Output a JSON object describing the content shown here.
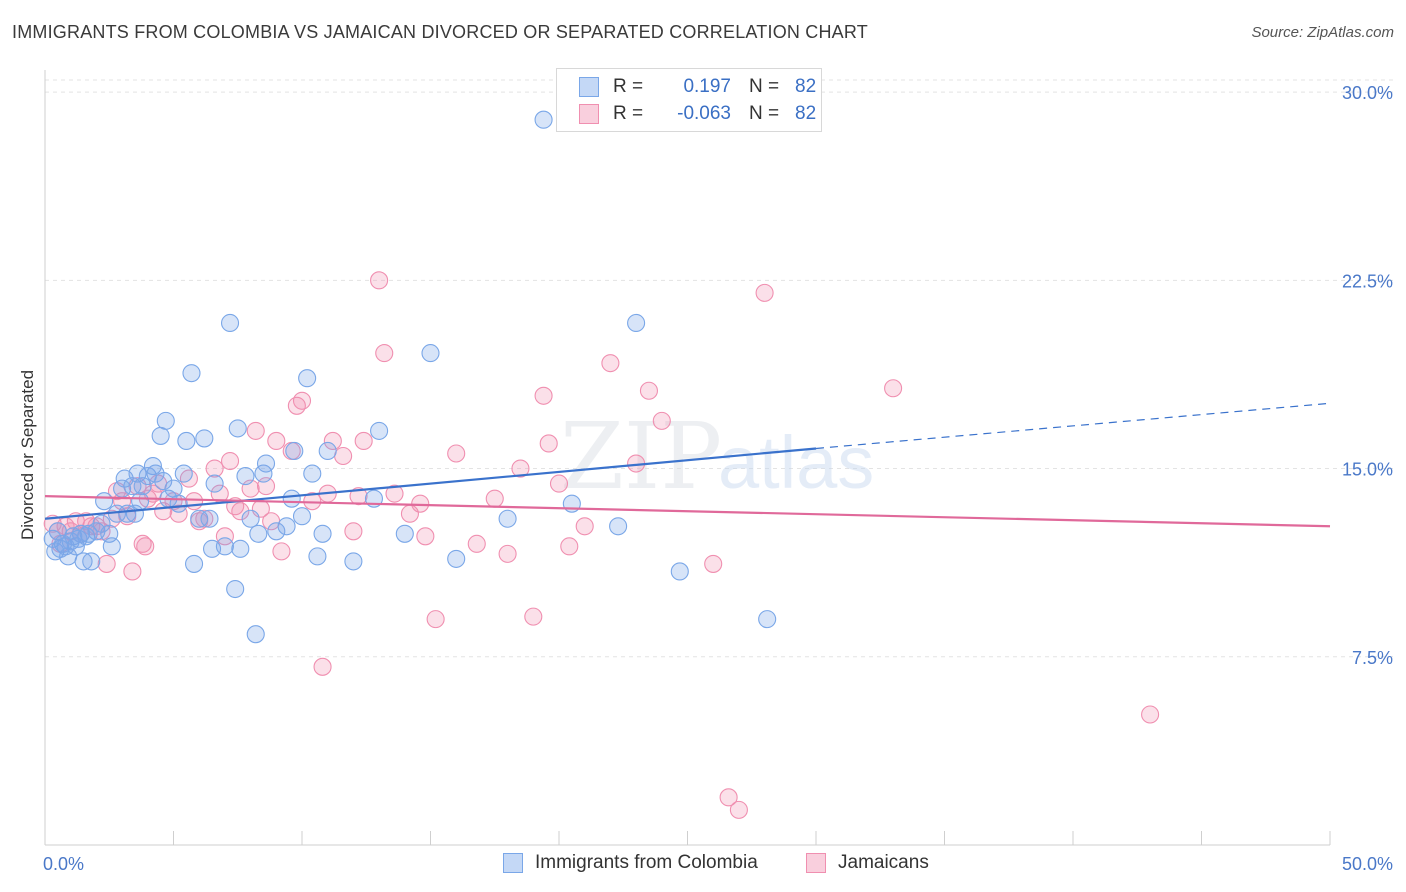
{
  "header": {
    "title": "IMMIGRANTS FROM COLOMBIA VS JAMAICAN DIVORCED OR SEPARATED CORRELATION CHART",
    "source": "Source: ZipAtlas.com"
  },
  "watermark": {
    "zip": "ZIP",
    "atlas": "atlas"
  },
  "legend": {
    "r_label": "R =",
    "n_label": "N =",
    "rows": [
      {
        "r": "0.197",
        "n": "82",
        "color": "#7aa7e8"
      },
      {
        "r": "-0.063",
        "n": "82",
        "color": "#f08fb0"
      }
    ]
  },
  "bottom_legend": [
    "Immigrants from Colombia",
    "Jamaicans"
  ],
  "chart_data": {
    "type": "scatter",
    "ylabel": "Divorced or Separated",
    "xlim": [
      0,
      50
    ],
    "ylim": [
      0,
      31
    ],
    "x_tick_labels": [
      "0.0%",
      "50.0%"
    ],
    "y_ticks": [
      7.5,
      15.0,
      22.5,
      30.0
    ],
    "y_tick_labels": [
      "7.5%",
      "15.0%",
      "22.5%",
      "30.0%"
    ],
    "grid": "horizontal dashed",
    "colors": {
      "colombia": "#7aa7e8",
      "jamaica": "#f08fb0",
      "colombia_line": "#3a72cc",
      "jamaica_line": "#e0699a"
    },
    "series": [
      {
        "name": "Immigrants from Colombia",
        "trend": {
          "x": [
            0,
            30
          ],
          "y": [
            13.0,
            15.8
          ],
          "dashed_to": [
            50,
            17.6
          ]
        },
        "points": [
          [
            0.3,
            12.2
          ],
          [
            0.4,
            11.7
          ],
          [
            0.5,
            12.5
          ],
          [
            0.6,
            11.8
          ],
          [
            0.7,
            12.0
          ],
          [
            0.8,
            11.9
          ],
          [
            0.9,
            11.5
          ],
          [
            1.0,
            12.1
          ],
          [
            1.1,
            12.3
          ],
          [
            1.2,
            11.9
          ],
          [
            1.3,
            12.2
          ],
          [
            1.5,
            11.3
          ],
          [
            1.6,
            12.3
          ],
          [
            1.7,
            12.4
          ],
          [
            1.8,
            11.3
          ],
          [
            2.0,
            12.5
          ],
          [
            2.2,
            12.8
          ],
          [
            2.3,
            13.7
          ],
          [
            2.5,
            12.4
          ],
          [
            2.6,
            11.9
          ],
          [
            2.8,
            13.2
          ],
          [
            3.0,
            14.2
          ],
          [
            3.1,
            14.6
          ],
          [
            3.2,
            13.2
          ],
          [
            3.4,
            14.3
          ],
          [
            3.5,
            13.2
          ],
          [
            3.6,
            14.8
          ],
          [
            3.8,
            14.3
          ],
          [
            4.0,
            14.7
          ],
          [
            4.2,
            15.1
          ],
          [
            4.3,
            14.8
          ],
          [
            4.5,
            16.3
          ],
          [
            4.6,
            14.5
          ],
          [
            4.7,
            16.9
          ],
          [
            4.8,
            13.8
          ],
          [
            5.0,
            14.2
          ],
          [
            5.2,
            13.6
          ],
          [
            5.4,
            14.8
          ],
          [
            5.5,
            16.1
          ],
          [
            5.7,
            18.8
          ],
          [
            5.8,
            11.2
          ],
          [
            6.0,
            13.0
          ],
          [
            6.2,
            16.2
          ],
          [
            6.4,
            13.0
          ],
          [
            6.5,
            11.8
          ],
          [
            6.6,
            14.4
          ],
          [
            7.0,
            11.9
          ],
          [
            7.2,
            20.8
          ],
          [
            7.4,
            10.2
          ],
          [
            7.5,
            16.6
          ],
          [
            7.6,
            11.8
          ],
          [
            7.8,
            14.7
          ],
          [
            8.0,
            13.0
          ],
          [
            8.2,
            8.4
          ],
          [
            8.3,
            12.4
          ],
          [
            8.5,
            14.8
          ],
          [
            8.6,
            15.2
          ],
          [
            9.0,
            12.5
          ],
          [
            9.4,
            12.7
          ],
          [
            9.6,
            13.8
          ],
          [
            9.7,
            15.7
          ],
          [
            10.0,
            13.1
          ],
          [
            10.2,
            18.6
          ],
          [
            10.4,
            14.8
          ],
          [
            10.6,
            11.5
          ],
          [
            10.8,
            12.4
          ],
          [
            11.0,
            15.7
          ],
          [
            12.0,
            11.3
          ],
          [
            12.8,
            13.8
          ],
          [
            13.0,
            16.5
          ],
          [
            14.0,
            12.4
          ],
          [
            15.0,
            19.6
          ],
          [
            16.0,
            11.4
          ],
          [
            18.0,
            13.0
          ],
          [
            19.4,
            28.9
          ],
          [
            20.5,
            13.6
          ],
          [
            22.3,
            12.7
          ],
          [
            23.0,
            20.8
          ],
          [
            24.7,
            10.9
          ],
          [
            28.1,
            9.0
          ],
          [
            1.4,
            12.4
          ],
          [
            3.7,
            13.7
          ]
        ]
      },
      {
        "name": "Jamaicans",
        "trend": {
          "x": [
            0,
            50
          ],
          "y": [
            13.9,
            12.7
          ]
        },
        "points": [
          [
            0.3,
            12.8
          ],
          [
            0.5,
            12.5
          ],
          [
            0.6,
            12.0
          ],
          [
            0.8,
            12.7
          ],
          [
            1.0,
            12.5
          ],
          [
            1.2,
            12.9
          ],
          [
            1.4,
            12.4
          ],
          [
            1.6,
            12.9
          ],
          [
            1.8,
            12.7
          ],
          [
            2.0,
            12.7
          ],
          [
            2.2,
            12.5
          ],
          [
            2.4,
            11.2
          ],
          [
            2.6,
            13.0
          ],
          [
            2.8,
            14.1
          ],
          [
            3.0,
            13.7
          ],
          [
            3.2,
            13.1
          ],
          [
            3.4,
            10.9
          ],
          [
            3.6,
            14.3
          ],
          [
            3.8,
            12.0
          ],
          [
            4.0,
            13.8
          ],
          [
            4.2,
            14.0
          ],
          [
            4.4,
            14.4
          ],
          [
            4.6,
            13.3
          ],
          [
            5.0,
            13.7
          ],
          [
            5.2,
            13.2
          ],
          [
            5.6,
            14.6
          ],
          [
            5.8,
            13.7
          ],
          [
            6.0,
            12.9
          ],
          [
            6.2,
            13.0
          ],
          [
            6.6,
            15.0
          ],
          [
            6.8,
            14.0
          ],
          [
            7.0,
            12.3
          ],
          [
            7.2,
            15.3
          ],
          [
            7.4,
            13.5
          ],
          [
            7.6,
            13.3
          ],
          [
            8.0,
            14.2
          ],
          [
            8.2,
            16.5
          ],
          [
            8.4,
            13.4
          ],
          [
            8.6,
            14.3
          ],
          [
            9.0,
            16.1
          ],
          [
            9.2,
            11.7
          ],
          [
            9.6,
            15.7
          ],
          [
            9.8,
            17.5
          ],
          [
            10.0,
            17.7
          ],
          [
            10.4,
            13.7
          ],
          [
            10.8,
            7.1
          ],
          [
            11.0,
            14.0
          ],
          [
            11.2,
            16.1
          ],
          [
            11.6,
            15.5
          ],
          [
            12.0,
            12.5
          ],
          [
            12.4,
            16.1
          ],
          [
            13.0,
            22.5
          ],
          [
            13.2,
            19.6
          ],
          [
            13.6,
            14.0
          ],
          [
            14.2,
            13.2
          ],
          [
            14.6,
            13.6
          ],
          [
            14.8,
            12.3
          ],
          [
            15.2,
            9.0
          ],
          [
            16.0,
            15.6
          ],
          [
            16.8,
            12.0
          ],
          [
            17.5,
            13.8
          ],
          [
            18.0,
            11.6
          ],
          [
            18.5,
            15.0
          ],
          [
            19.0,
            9.1
          ],
          [
            19.4,
            17.9
          ],
          [
            19.6,
            16.0
          ],
          [
            20.0,
            14.4
          ],
          [
            20.4,
            11.9
          ],
          [
            21.0,
            12.7
          ],
          [
            22.0,
            19.2
          ],
          [
            23.0,
            15.2
          ],
          [
            23.5,
            18.1
          ],
          [
            24.0,
            16.9
          ],
          [
            26.0,
            11.2
          ],
          [
            26.6,
            1.9
          ],
          [
            27.0,
            1.4
          ],
          [
            28.0,
            22.0
          ],
          [
            33.0,
            18.2
          ],
          [
            43.0,
            5.2
          ],
          [
            8.8,
            12.9
          ],
          [
            3.9,
            11.9
          ],
          [
            12.2,
            13.9
          ]
        ]
      }
    ]
  }
}
